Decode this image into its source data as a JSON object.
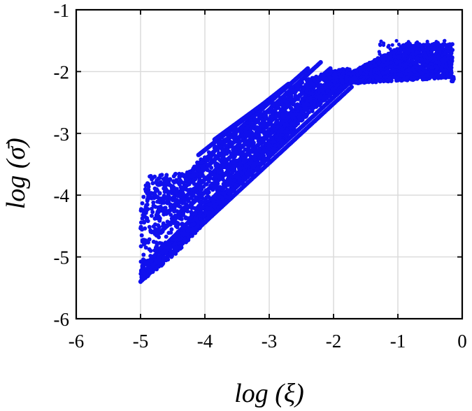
{
  "chart_data": {
    "type": "scatter",
    "title": "",
    "xlabel": "log (ξ)",
    "ylabel": "log (σ̄)",
    "xlim": [
      -6,
      0
    ],
    "ylim": [
      -6,
      -1
    ],
    "xticks": [
      -6,
      -5,
      -4,
      -3,
      -2,
      -1,
      0
    ],
    "yticks": [
      -6,
      -5,
      -4,
      -3,
      -2,
      -1
    ],
    "xtick_labels": [
      "-6",
      "-5",
      "-4",
      "-3",
      "-2",
      "-1",
      "0"
    ],
    "ytick_labels": [
      "-6",
      "-5",
      "-4",
      "-3",
      "-2",
      "-1"
    ],
    "grid": true,
    "legend": "none",
    "marker_color": "#1010ee",
    "series": [
      {
        "bands": [
          {
            "x_start": -5.0,
            "y_start": -5.4,
            "x_end": -1.72,
            "y_end": -2.25
          },
          {
            "x_start": -4.9,
            "y_start": -5.2,
            "x_end": -1.75,
            "y_end": -2.18
          },
          {
            "x_start": -4.85,
            "y_start": -5.05,
            "x_end": -1.95,
            "y_end": -2.05
          },
          {
            "x_start": -4.75,
            "y_start": -4.65,
            "x_end": -1.95,
            "y_end": -2.05
          },
          {
            "x_start": -4.6,
            "y_start": -4.3,
            "x_end": -2.05,
            "y_end": -1.95
          },
          {
            "x_start": -4.5,
            "y_start": -4.05,
            "x_end": -2.2,
            "y_end": -1.85
          },
          {
            "x_start": -4.3,
            "y_start": -3.7,
            "x_end": -2.4,
            "y_end": -1.95
          },
          {
            "x_start": -4.1,
            "y_start": -3.35,
            "x_end": -2.7,
            "y_end": -2.2
          },
          {
            "x_start": -3.85,
            "y_start": -3.1,
            "x_end": -2.8,
            "y_end": -2.3
          }
        ],
        "upper_edge": [
          [
            -4.3,
            -3.65
          ],
          [
            -4.0,
            -3.35
          ],
          [
            -3.6,
            -2.95
          ],
          [
            -3.2,
            -2.75
          ],
          [
            -2.85,
            -2.45
          ],
          [
            -2.6,
            -2.2
          ],
          [
            -2.2,
            -2.05
          ],
          [
            -2.0,
            -1.98
          ],
          [
            -1.8,
            -1.95
          ]
        ],
        "lower_edge": [
          [
            -5.0,
            -5.4
          ],
          [
            -4.5,
            -5.0
          ],
          [
            -4.0,
            -4.45
          ],
          [
            -3.5,
            -3.9
          ],
          [
            -3.0,
            -3.4
          ],
          [
            -2.5,
            -2.8
          ],
          [
            -2.0,
            -2.35
          ],
          [
            -1.75,
            -2.2
          ]
        ],
        "plateau": {
          "x_range": [
            -1.8,
            -0.15
          ],
          "y_range": [
            -2.25,
            -1.5
          ],
          "peak": {
            "x": -0.75,
            "y": -1.48
          }
        },
        "right_tail": [
          [
            -0.4,
            -1.95
          ],
          [
            -0.25,
            -2.05
          ],
          [
            -0.15,
            -2.12
          ]
        ]
      }
    ]
  }
}
